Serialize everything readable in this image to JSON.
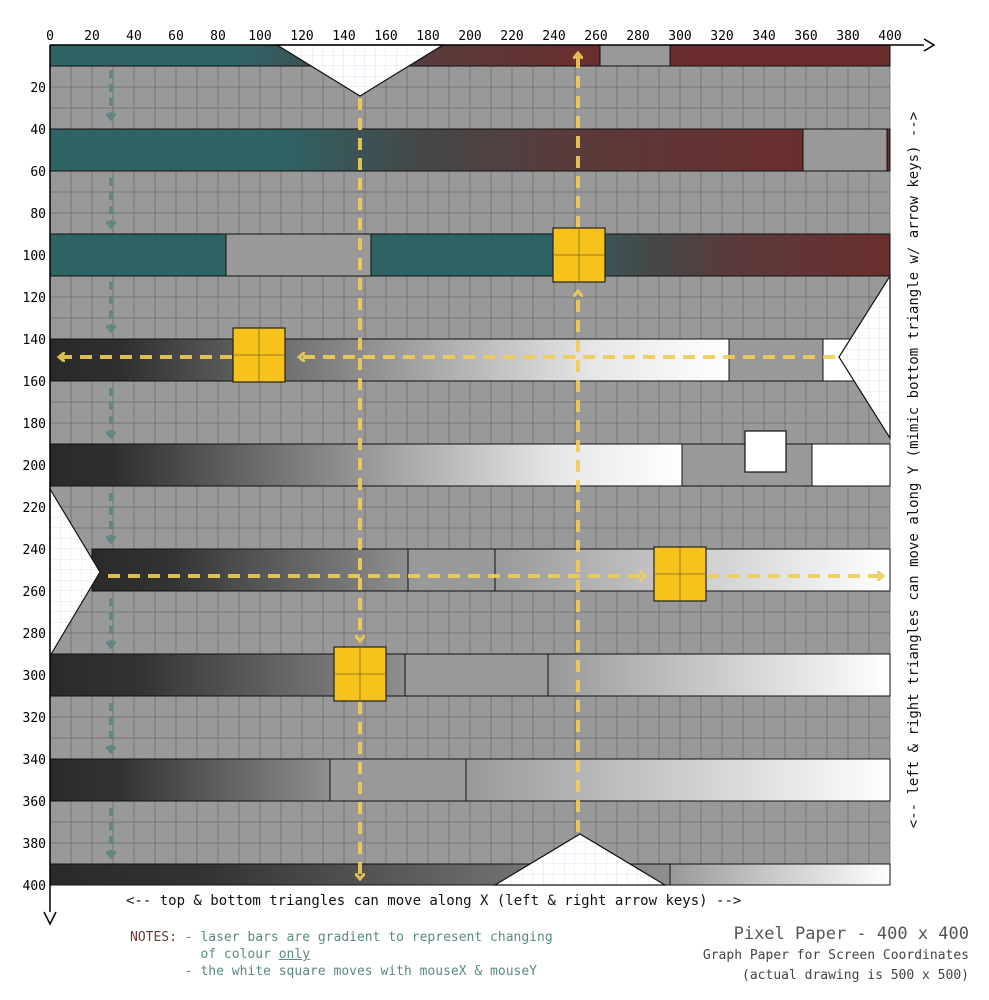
{
  "diagram": {
    "x_ticks": [
      "0",
      "20",
      "40",
      "60",
      "80",
      "100",
      "120",
      "140",
      "160",
      "180",
      "200",
      "220",
      "240",
      "260",
      "280",
      "300",
      "320",
      "340",
      "360",
      "380",
      "400"
    ],
    "y_ticks": [
      "20",
      "40",
      "60",
      "80",
      "100",
      "120",
      "140",
      "160",
      "180",
      "200",
      "220",
      "240",
      "260",
      "280",
      "300",
      "320",
      "340",
      "360",
      "380",
      "400"
    ],
    "bottom_caption": "<-- top & bottom triangles can move along X (left & right arrow keys) -->",
    "right_caption": "<-- left & right triangles can move along Y (mimic bottom triangle w/ arrow keys) -->",
    "notes": {
      "label": "NOTES:",
      "line1": "- laser bars are gradient to represent changing",
      "line2_pre": "of colour ",
      "line2_em": "only",
      "line3": "- the white square moves with mouseX & mouseY"
    },
    "title": "Pixel Paper - 400 x 400",
    "subtitle": "Graph Paper for Screen Coordinates",
    "subtitle2": "(actual drawing is 500 x 500)",
    "colors": {
      "background": "#999999",
      "grid": "#6e6e6e",
      "teal": "#2f6366",
      "maroon": "#6b2e2e",
      "dark": "#2a2a2a",
      "white": "#ffffff",
      "yellow_square": "#f7c21b",
      "yellow_arrow": "#f1cd57",
      "teal_arrow": "#5f8784"
    }
  }
}
